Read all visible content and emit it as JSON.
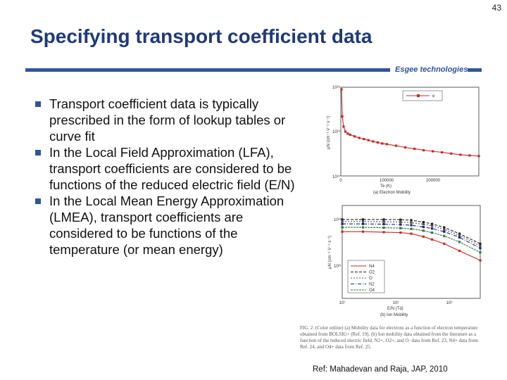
{
  "slide": {
    "number": "43",
    "title": "Specifying transport coefficient data",
    "brand": "Esgee technologies",
    "bullets": [
      "Transport coefficient data is typically prescribed in the form of lookup tables or curve fit",
      "In the Local Field Approximation (LFA), transport coefficients are considered to be functions of the reduced electric field (E/N)",
      "In the Local Mean Energy Approximation (LMEA), transport coefficients are considered to be functions of the temperature (or mean energy)"
    ],
    "reference": "Ref: Mahadevan and Raja, JAP, 2010"
  },
  "figure": {
    "caption": "FIG. 2. (Color online) (a) Mobility data for electrons as a function of electron temperature obtained from BOLSIG+ (Ref. 19). (b) Ion mobility data obtained from the literature as a function of the reduced electric field. N2+, O2+, and O- data from Ref. 23, N4+ data from Ref. 24, and O4+ data from Ref. 25.",
    "panel_a": {
      "caption": "(a) Electron Mobility",
      "xlabel": "Te (K)",
      "ylabel": "μN (cm⁻¹ V⁻¹ s⁻¹)",
      "legend": [
        "e"
      ],
      "ytick_labels": [
        "10²⁵",
        "10²⁴",
        "10²³"
      ],
      "xtick_labels": [
        "0",
        "100000",
        "200000"
      ]
    },
    "panel_b": {
      "caption": "(b) Ion Mobility",
      "xlabel": "E/N (Td)",
      "ylabel": "μN (cm⁻¹ V⁻¹ s⁻¹)",
      "legend": [
        "N4",
        "O2",
        "O",
        "N2",
        "O4"
      ],
      "ytick_labels": [
        "10²²",
        "10²¹"
      ],
      "xtick_labels": [
        "10¹",
        "10²",
        "10³"
      ]
    }
  },
  "chart_data": [
    {
      "type": "line",
      "title": "(a) Electron Mobility",
      "xlabel": "Te (K)",
      "ylabel": "μN (cm⁻¹ V⁻¹ s⁻¹)",
      "y_scale": "log",
      "xlim": [
        0,
        300000
      ],
      "ylim": [
        1e+23,
        1e+25
      ],
      "legend_position": "top-right",
      "series": [
        {
          "name": "e",
          "color": "#c62828",
          "x": [
            1500,
            3000,
            6000,
            10000,
            15000,
            20000,
            30000,
            40000,
            50000,
            60000,
            70000,
            80000,
            90000,
            100000,
            120000,
            140000,
            160000,
            180000,
            200000,
            220000,
            240000,
            260000,
            280000,
            300000
          ],
          "y": [
            9e+24,
            2.2e+24,
            1.3e+24,
            1e+24,
            9e+23,
            8.5e+23,
            7.8e+23,
            7.2e+23,
            6.8e+23,
            6.4e+23,
            6e+23,
            5.7e+23,
            5.4e+23,
            5.2e+23,
            4.8e+23,
            4.4e+23,
            4.1e+23,
            3.8e+23,
            3.6e+23,
            3.4e+23,
            3.2e+23,
            3e+23,
            2.9e+23,
            2.8e+23
          ]
        }
      ]
    },
    {
      "type": "line",
      "title": "(b) Ion Mobility",
      "xlabel": "E/N (Td)",
      "ylabel": "μN (cm⁻¹ V⁻¹ s⁻¹)",
      "x_scale": "log",
      "y_scale": "log",
      "xlim": [
        10,
        1000
      ],
      "ylim": [
        4e+20,
        8e+22
      ],
      "legend_position": "bottom-right",
      "series": [
        {
          "name": "N4",
          "color": "#c62828",
          "x": [
            10,
            20,
            40,
            70,
            100,
            150,
            200,
            300,
            500,
            1000
          ],
          "y": [
            1.8e+22,
            1.8e+22,
            1.75e+22,
            1.7e+22,
            1.6e+22,
            1.35e+22,
            1.15e+22,
            9e+21,
            6e+21,
            3.5e+21
          ]
        },
        {
          "name": "O2",
          "color": "#222222",
          "x": [
            10,
            20,
            40,
            70,
            100,
            150,
            200,
            300,
            500,
            1000
          ],
          "y": [
            3.6e+22,
            3.6e+22,
            3.6e+22,
            3.55e+22,
            3.45e+22,
            3.1e+22,
            2.8e+22,
            2.3e+22,
            1.6e+22,
            9e+21
          ]
        },
        {
          "name": "O",
          "color": "#555555",
          "x": [
            10,
            20,
            40,
            70,
            100,
            150,
            200,
            300,
            500,
            1000
          ],
          "y": [
            3.2e+22,
            3.2e+22,
            3.15e+22,
            3.1e+22,
            3e+22,
            2.75e+22,
            2.5e+22,
            2.05e+22,
            1.45e+22,
            8e+21
          ]
        },
        {
          "name": "N2",
          "color": "#1a237e",
          "x": [
            10,
            20,
            40,
            70,
            100,
            150,
            200,
            300,
            500,
            1000
          ],
          "y": [
            2.8e+22,
            2.8e+22,
            2.75e+22,
            2.7e+22,
            2.6e+22,
            2.35e+22,
            2.15e+22,
            1.8e+22,
            1.3e+22,
            7e+21
          ]
        },
        {
          "name": "O4",
          "color": "#2e7d32",
          "x": [
            10,
            20,
            40,
            70,
            100,
            150,
            200,
            300,
            500,
            1000
          ],
          "y": [
            2.3e+22,
            2.3e+22,
            2.25e+22,
            2.2e+22,
            2.1e+22,
            1.9e+22,
            1.7e+22,
            1.4e+22,
            1e+22,
            5.5e+21
          ]
        }
      ]
    }
  ]
}
